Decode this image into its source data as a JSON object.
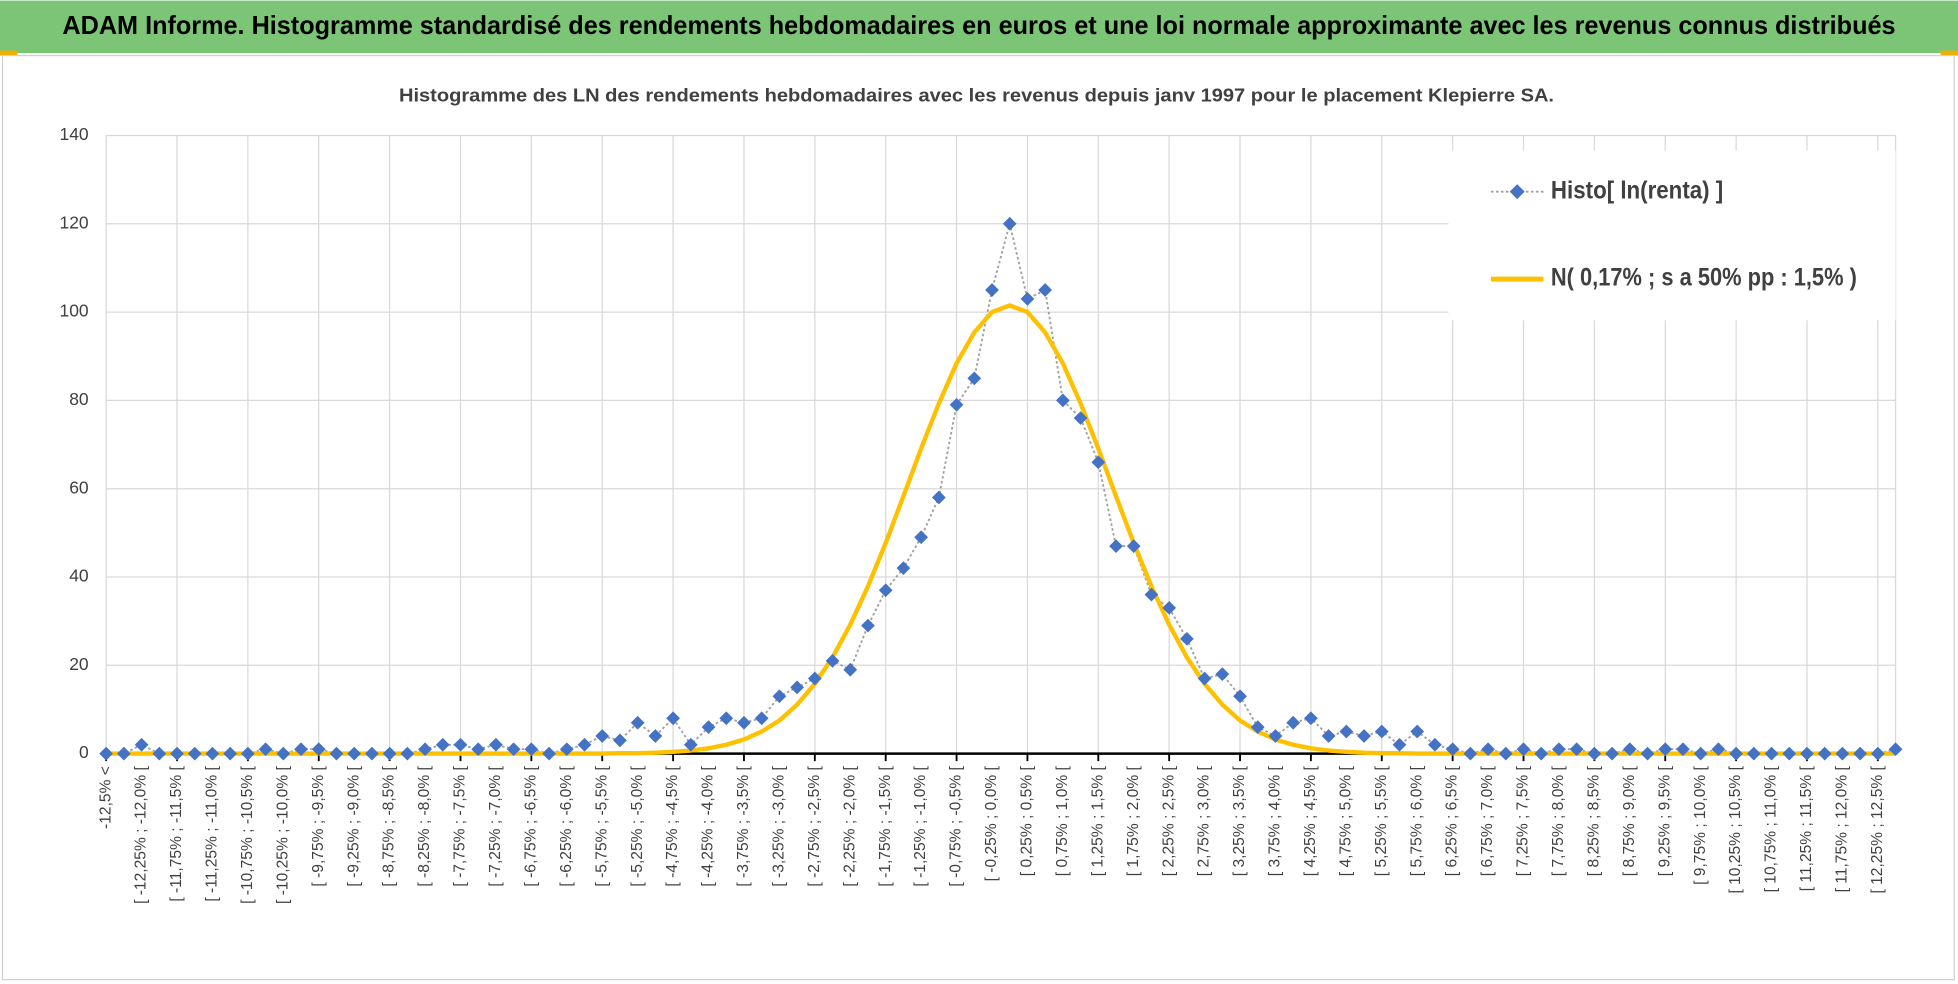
{
  "header": {
    "title": "ADAM Informe. Histogramme standardisé des rendements hebdomadaires en euros et une loi normale approximante avec les revenus connus distribués"
  },
  "chart_data": {
    "type": "line",
    "title": "Histogramme des LN des rendements hebdomadaires avec les revenus depuis janv 1997 pour le placement Klepierre SA.",
    "categories": [
      "-12,5% <",
      null,
      "[ -12,25% ; -12,0% [",
      null,
      "[ -11,75% ; -11,5% [",
      null,
      "[ -11,25% ; -11,0% [",
      null,
      "[ -10,75% ; -10,5% [",
      null,
      "[ -10,25% ; -10,0% [",
      null,
      "[ -9,75% ; -9,5% [",
      null,
      "[ -9,25% ; -9,0% [",
      null,
      "[ -8,75% ; -8,5% [",
      null,
      "[ -8,25% ; -8,0% [",
      null,
      "[ -7,75% ; -7,5% [",
      null,
      "[ -7,25% ; -7,0% [",
      null,
      "[ -6,75% ; -6,5% [",
      null,
      "[ -6,25% ; -6,0% [",
      null,
      "[ -5,75% ; -5,5% [",
      null,
      "[ -5,25% ; -5,0% [",
      null,
      "[ -4,75% ; -4,5% [",
      null,
      "[ -4,25% ; -4,0% [",
      null,
      "[ -3,75% ; -3,5% [",
      null,
      "[ -3,25% ; -3,0% [",
      null,
      "[ -2,75% ; -2,5% [",
      null,
      "[ -2,25% ; -2,0% [",
      null,
      "[ -1,75% ; -1,5% [",
      null,
      "[ -1,25% ; -1,0% [",
      null,
      "[ -0,75% ; -0,5% [",
      null,
      "[ -0,25% ; 0,0% [",
      null,
      "[ 0,25% ; 0,5% [",
      null,
      "[ 0,75% ; 1,0% [",
      null,
      "[ 1,25% ; 1,5% [",
      null,
      "[ 1,75% ; 2,0% [",
      null,
      "[ 2,25% ; 2,5% [",
      null,
      "[ 2,75% ; 3,0% [",
      null,
      "[ 3,25% ; 3,5% [",
      null,
      "[ 3,75% ; 4,0% [",
      null,
      "[ 4,25% ; 4,5% [",
      null,
      "[ 4,75% ; 5,0% [",
      null,
      "[ 5,25% ; 5,5% [",
      null,
      "[ 5,75% ; 6,0% [",
      null,
      "[ 6,25% ; 6,5% [",
      null,
      "[ 6,75% ; 7,0% [",
      null,
      "[ 7,25% ; 7,5% [",
      null,
      "[ 7,75% ; 8,0% [",
      null,
      "[ 8,25% ; 8,5% [",
      null,
      "[ 8,75% ; 9,0% [",
      null,
      "[ 9,25% ; 9,5% [",
      null,
      "[ 9,75% ; 10,0% [",
      null,
      "[ 10,25% ; 10,5% [",
      null,
      "[ 10,75% ; 11,0% [",
      null,
      "[ 11,25% ; 11,5% [",
      null,
      "[ 11,75% ; 12,0% [",
      null,
      "[ 12,25% ; 12,5% [",
      null
    ],
    "series": [
      {
        "name": "Histo[ ln(renta) ]",
        "color": "#4472c4",
        "values": [
          0,
          0,
          2,
          0,
          0,
          0,
          0,
          0,
          0,
          1,
          0,
          1,
          1,
          0,
          0,
          0,
          0,
          0,
          1,
          2,
          2,
          1,
          2,
          1,
          1,
          0,
          1,
          2,
          4,
          3,
          7,
          4,
          8,
          2,
          6,
          8,
          7,
          8,
          13,
          15,
          17,
          21,
          19,
          29,
          37,
          42,
          49,
          58,
          79,
          85,
          105,
          120,
          103,
          105,
          80,
          76,
          66,
          47,
          47,
          36,
          33,
          26,
          17,
          18,
          13,
          6,
          4,
          7,
          8,
          4,
          5,
          4,
          5,
          2,
          5,
          2,
          1,
          0,
          1,
          0,
          1,
          0,
          1,
          1,
          0,
          0,
          1,
          0,
          1,
          1,
          0,
          1,
          0,
          0,
          0,
          0,
          0,
          0,
          0,
          0,
          0,
          1
        ]
      },
      {
        "name": "N( 0,17% ; s a 50% pp : 1,5% )",
        "color": "#ffc000",
        "values": [
          0,
          0,
          0,
          0,
          0,
          0,
          0,
          0,
          0,
          0,
          0,
          0,
          0,
          0,
          0,
          0,
          0,
          0,
          0,
          0,
          0,
          0,
          0,
          0,
          0,
          0,
          0,
          0,
          0,
          0.1,
          0.1,
          0.2,
          0.4,
          0.7,
          1.2,
          2.0,
          3.2,
          5.0,
          7.5,
          11.1,
          15.8,
          21.8,
          29.2,
          37.9,
          47.7,
          58.3,
          69.1,
          79.3,
          88.4,
          95.4,
          100.0,
          101.5,
          100.0,
          95.4,
          88.4,
          79.3,
          69.1,
          58.3,
          47.7,
          37.9,
          29.2,
          21.8,
          15.8,
          11.1,
          7.5,
          5.0,
          3.2,
          2.0,
          1.2,
          0.7,
          0.4,
          0.2,
          0.1,
          0.1,
          0,
          0,
          0,
          0,
          0,
          0,
          0,
          0,
          0,
          0,
          0,
          0,
          0,
          0,
          0,
          0,
          0,
          0,
          0,
          0,
          0,
          0,
          0,
          0,
          0,
          0,
          0,
          0
        ]
      }
    ],
    "ylim": [
      0,
      140
    ],
    "yticks": [
      0,
      20,
      40,
      60,
      80,
      100,
      120,
      140
    ],
    "grid": true,
    "legend": "top-right"
  }
}
